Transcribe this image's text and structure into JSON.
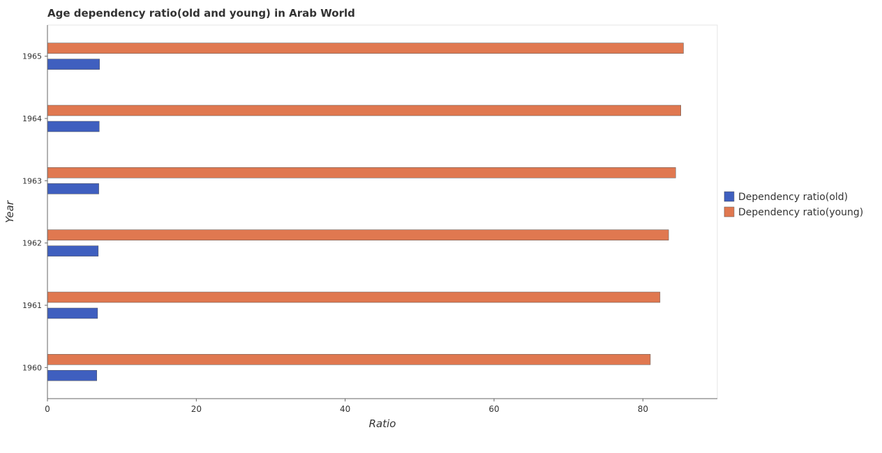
{
  "chart_data": {
    "type": "bar",
    "orientation": "horizontal",
    "title": "Age dependency ratio(old and young) in Arab World",
    "xlabel": "Ratio",
    "ylabel": "Year",
    "categories": [
      "1960",
      "1961",
      "1962",
      "1963",
      "1964",
      "1965"
    ],
    "xlim": [
      0,
      90
    ],
    "xticks": [
      0,
      20,
      40,
      60,
      80
    ],
    "series": [
      {
        "name": "Dependency ratio(old)",
        "color": "#3f5fbf",
        "values": [
          6.63,
          6.74,
          6.83,
          6.9,
          6.96,
          7.0
        ]
      },
      {
        "name": "Dependency ratio(young)",
        "color": "#e07850",
        "values": [
          81.0,
          82.3,
          83.45,
          84.4,
          85.1,
          85.45
        ]
      }
    ],
    "legend_position": "right",
    "grid": false
  }
}
